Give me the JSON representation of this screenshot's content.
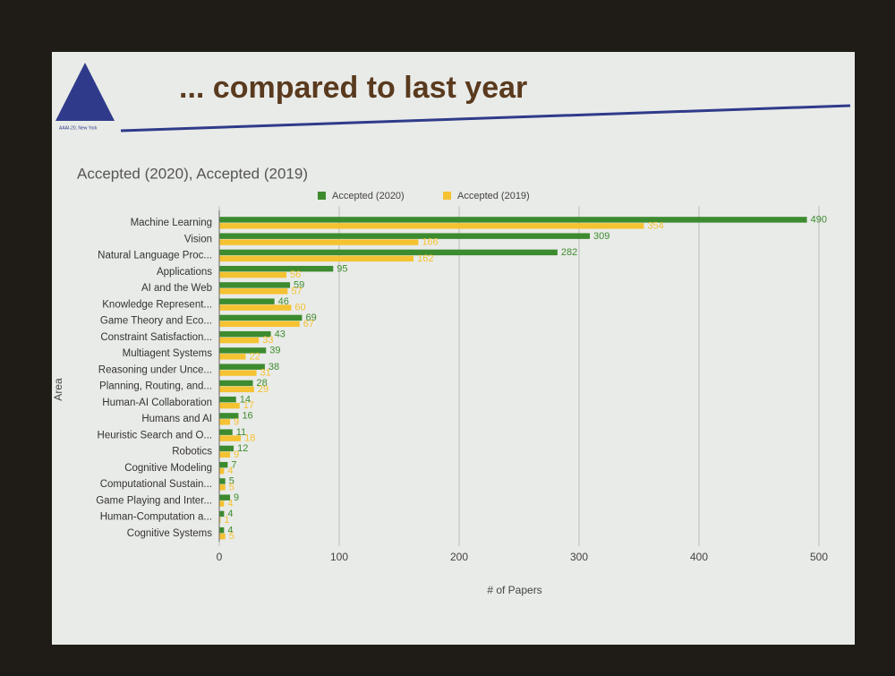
{
  "slide": {
    "title": "... compared to last year",
    "logo_text": "AAAI-20, New York"
  },
  "chart_data": {
    "type": "hbar",
    "title": "Accepted (2020), Accepted (2019)",
    "x_label": "# of Papers",
    "y_label": "Area",
    "categories": [
      "Machine Learning",
      "Vision",
      "Natural Language Proc...",
      "Applications",
      "AI and the Web",
      "Knowledge Represent...",
      "Game Theory and Eco...",
      "Constraint Satisfaction...",
      "Multiagent Systems",
      "Reasoning under Unce...",
      "Planning, Routing, and...",
      "Human-AI Collaboration",
      "Humans and AI",
      "Heuristic Search and O...",
      "Robotics",
      "Cognitive Modeling",
      "Computational Sustain...",
      "Game Playing and Inter...",
      "Human-Computation a...",
      "Cognitive Systems"
    ],
    "series": [
      {
        "name": "Accepted (2020)",
        "color": "#3d8b2f",
        "values": [
          490,
          309,
          282,
          95,
          59,
          46,
          69,
          43,
          39,
          38,
          28,
          14,
          16,
          11,
          12,
          7,
          5,
          9,
          4,
          4
        ]
      },
      {
        "name": "Accepted (2019)",
        "color": "#f5c232",
        "values": [
          354,
          166,
          162,
          56,
          57,
          60,
          67,
          33,
          22,
          31,
          29,
          17,
          9,
          18,
          9,
          4,
          5,
          4,
          1,
          5
        ]
      }
    ],
    "xlim": [
      0,
      500
    ],
    "xticks": [
      0,
      100,
      200,
      300,
      400,
      500
    ],
    "grid": true,
    "legend": "top"
  }
}
